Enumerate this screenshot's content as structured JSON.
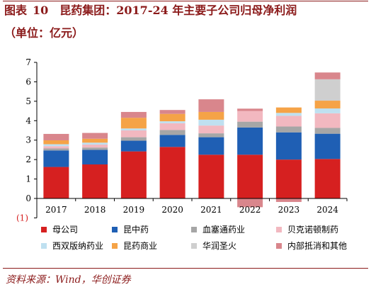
{
  "header": {
    "label": "图表",
    "number": "10",
    "title": "昆药集团：2017-24 年主要子公司归母净利润",
    "unit": "（单位：亿元）"
  },
  "footer": {
    "source": "资料来源：Wind，华创证券"
  },
  "colors": {
    "母公司": "#d62020",
    "昆中药": "#1f5fb4",
    "血塞通药业": "#a6a6a6",
    "贝克诺顿制药": "#f2b8c0",
    "西双版纳药业": "#bfe0f0",
    "昆药商业": "#f5a347",
    "华润圣火": "#cfcfcf",
    "内部抵消和其他": "#d9868c"
  },
  "chart_data": {
    "type": "bar",
    "stacked": true,
    "categories": [
      "2017",
      "2018",
      "2019",
      "2020",
      "2021",
      "2022",
      "2023",
      "2024"
    ],
    "ylim": [
      -1,
      7
    ],
    "yticks": [
      0,
      1,
      2,
      3,
      4,
      5,
      6,
      7
    ],
    "ytick_labels": [
      "0",
      "1",
      "2",
      "3",
      "4",
      "5",
      "6",
      "7"
    ],
    "negative_label": "(1)",
    "grid": false,
    "legend_position": "bottom",
    "series": [
      {
        "name": "母公司",
        "values": [
          1.62,
          1.75,
          2.42,
          2.65,
          2.25,
          2.25,
          2.0,
          2.03
        ]
      },
      {
        "name": "昆中药",
        "values": [
          0.85,
          0.75,
          0.55,
          0.62,
          0.9,
          1.4,
          1.4,
          1.3
        ]
      },
      {
        "name": "血塞通药业",
        "values": [
          0.1,
          0.12,
          0.18,
          0.25,
          0.2,
          0.3,
          0.3,
          0.3
        ]
      },
      {
        "name": "贝克诺顿制药",
        "values": [
          0.12,
          0.15,
          0.35,
          0.35,
          0.4,
          0.55,
          0.55,
          0.75
        ]
      },
      {
        "name": "西双版纳药业",
        "values": [
          0.1,
          0.1,
          0.1,
          0.1,
          0.3,
          0.0,
          0.15,
          0.25
        ]
      },
      {
        "name": "昆药商业",
        "values": [
          0.2,
          0.2,
          0.55,
          0.38,
          0.4,
          0.0,
          0.28,
          0.4
        ]
      },
      {
        "name": "华润圣火",
        "values": [
          0.0,
          0.0,
          0.0,
          0.0,
          0.0,
          0.0,
          0.0,
          1.1
        ]
      },
      {
        "name": "内部抵消和其他",
        "values": [
          0.33,
          0.3,
          0.3,
          0.2,
          0.65,
          0.12,
          -0.18,
          0.35
        ]
      }
    ],
    "negative_extras": {
      "2022": -0.45
    }
  }
}
